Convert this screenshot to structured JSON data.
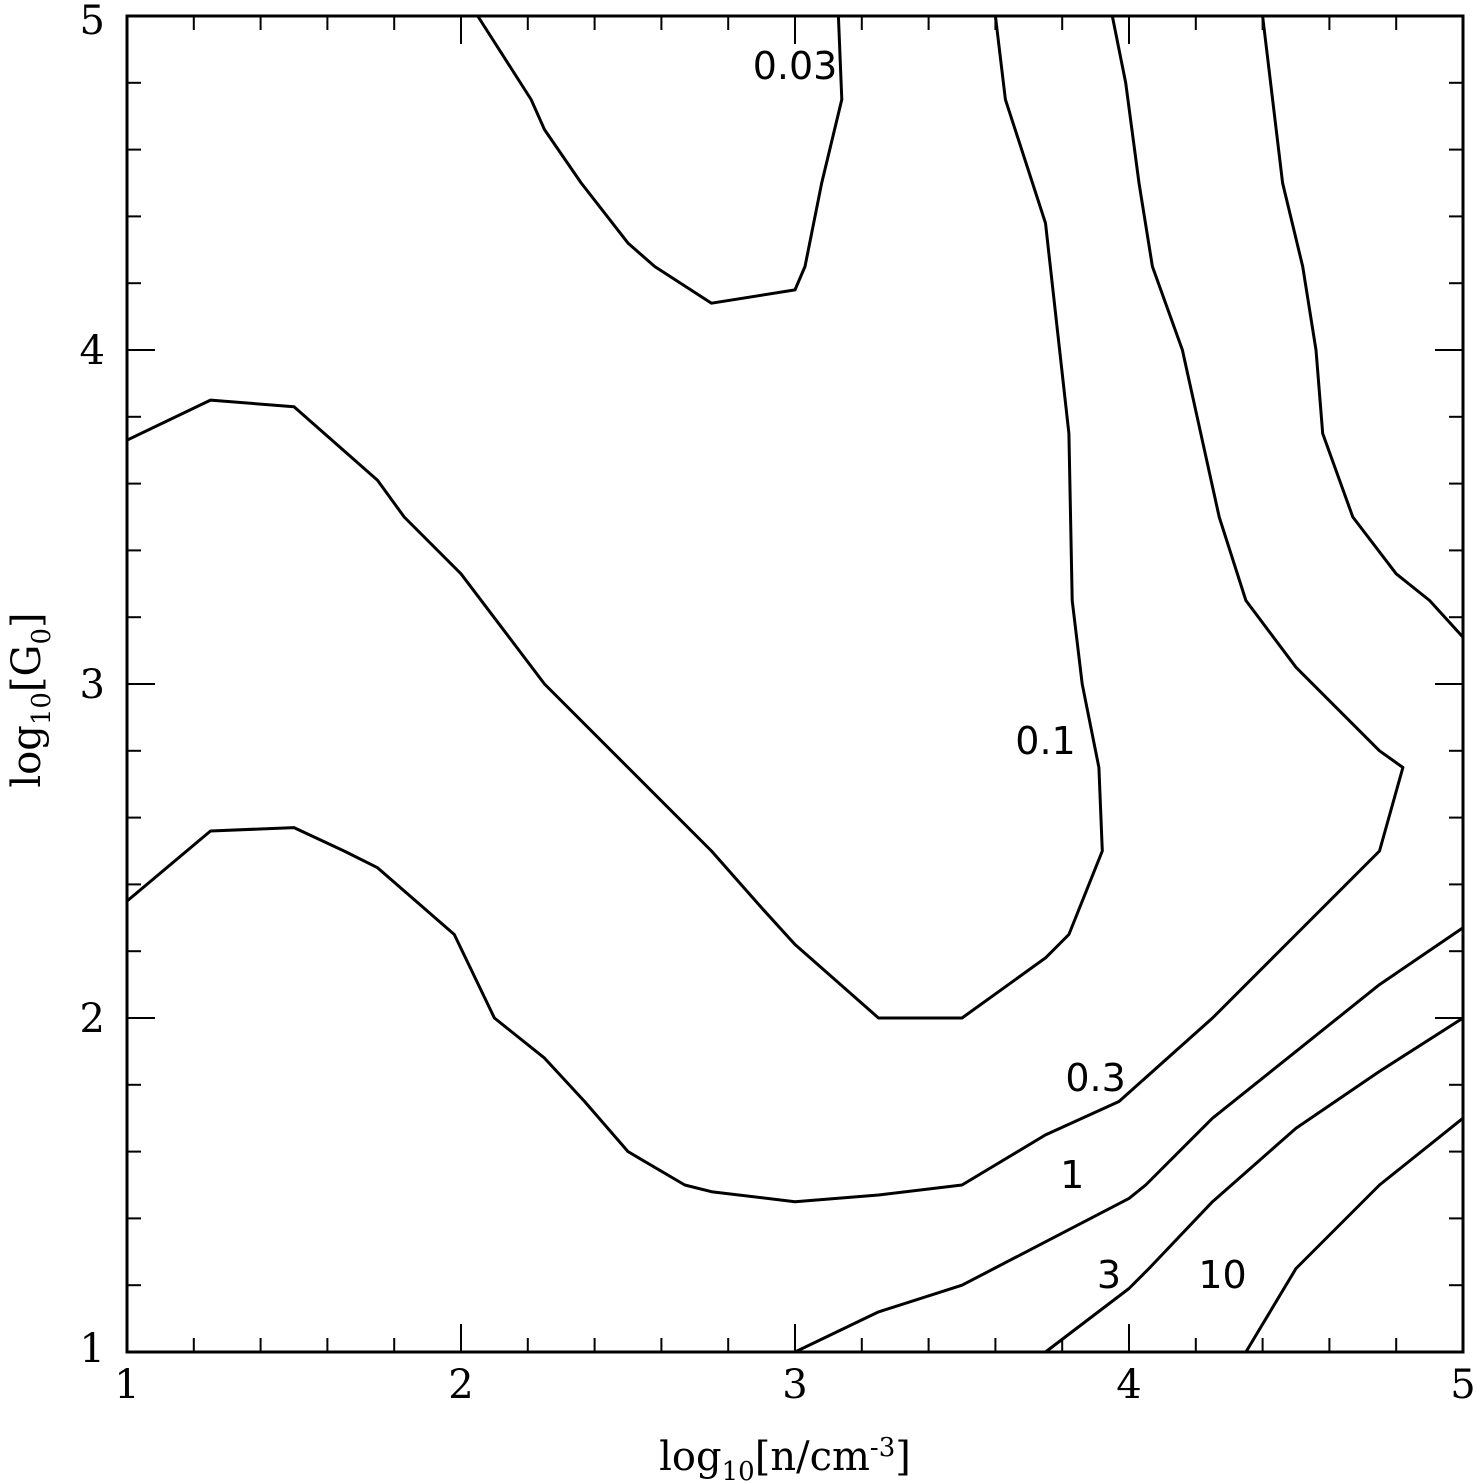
{
  "chart_data": {
    "type": "contour",
    "xlabel": {
      "prefix": "log",
      "sub": "10",
      "body": "[n/cm",
      "sup": "-3",
      "suffix": "]"
    },
    "ylabel": {
      "prefix": "log",
      "sub": "10",
      "body": "[G",
      "sub2": "0",
      "suffix": "]"
    },
    "xlim": [
      1,
      5
    ],
    "ylim": [
      1,
      5
    ],
    "xticks": [
      1,
      2,
      3,
      4,
      5
    ],
    "yticks": [
      1,
      2,
      3,
      4,
      5
    ],
    "minor_step": 0.2,
    "contours": [
      {
        "level": "0.03",
        "label_at": [
          3.0,
          4.85
        ],
        "points": [
          [
            2.05,
            5.0
          ],
          [
            2.21,
            4.75
          ],
          [
            2.25,
            4.66
          ],
          [
            2.36,
            4.5
          ],
          [
            2.5,
            4.32
          ],
          [
            2.58,
            4.25
          ],
          [
            2.75,
            4.14
          ],
          [
            3.0,
            4.18
          ],
          [
            3.03,
            4.25
          ],
          [
            3.08,
            4.5
          ],
          [
            3.14,
            4.75
          ],
          [
            3.13,
            5.0
          ]
        ]
      },
      {
        "level": "0.1",
        "label_at": [
          3.75,
          2.83
        ],
        "points": [
          [
            1.0,
            3.73
          ],
          [
            1.25,
            3.85
          ],
          [
            1.5,
            3.83
          ],
          [
            1.75,
            3.61
          ],
          [
            1.83,
            3.5
          ],
          [
            2.0,
            3.33
          ],
          [
            2.25,
            3.0
          ],
          [
            2.5,
            2.75
          ],
          [
            2.75,
            2.5
          ],
          [
            2.9,
            2.33
          ],
          [
            3.0,
            2.22
          ],
          [
            3.25,
            2.0
          ],
          [
            3.5,
            2.0
          ],
          [
            3.75,
            2.18
          ],
          [
            3.82,
            2.25
          ],
          [
            3.92,
            2.5
          ],
          [
            3.91,
            2.75
          ],
          [
            3.86,
            3.0
          ],
          [
            3.83,
            3.25
          ],
          [
            3.82,
            3.75
          ],
          [
            3.75,
            4.38
          ],
          [
            3.63,
            4.75
          ],
          [
            3.6,
            5.0
          ]
        ]
      },
      {
        "level": "0.3",
        "label_at": [
          3.9,
          1.82
        ],
        "points": [
          [
            1.0,
            2.35
          ],
          [
            1.25,
            2.56
          ],
          [
            1.5,
            2.57
          ],
          [
            1.65,
            2.5
          ],
          [
            1.75,
            2.45
          ],
          [
            1.98,
            2.25
          ],
          [
            2.1,
            2.0
          ],
          [
            2.25,
            1.88
          ],
          [
            2.37,
            1.75
          ],
          [
            2.5,
            1.6
          ],
          [
            2.67,
            1.5
          ],
          [
            2.75,
            1.48
          ],
          [
            3.0,
            1.45
          ],
          [
            3.25,
            1.47
          ],
          [
            3.5,
            1.5
          ],
          [
            3.75,
            1.65
          ],
          [
            3.97,
            1.75
          ],
          [
            4.25,
            2.0
          ],
          [
            4.5,
            2.25
          ],
          [
            4.75,
            2.5
          ],
          [
            4.82,
            2.75
          ],
          [
            4.75,
            2.8
          ],
          [
            4.5,
            3.05
          ],
          [
            4.35,
            3.25
          ],
          [
            4.27,
            3.5
          ],
          [
            4.16,
            4.0
          ],
          [
            4.07,
            4.25
          ],
          [
            4.03,
            4.5
          ],
          [
            3.99,
            4.8
          ],
          [
            3.95,
            5.0
          ]
        ]
      },
      {
        "level": "1",
        "label_at": [
          3.83,
          1.53
        ],
        "points": [
          [
            3.0,
            1.0
          ],
          [
            3.25,
            1.12
          ],
          [
            3.5,
            1.2
          ],
          [
            3.75,
            1.33
          ],
          [
            4.0,
            1.46
          ],
          [
            4.05,
            1.5
          ],
          [
            4.25,
            1.7
          ],
          [
            4.5,
            1.9
          ],
          [
            4.75,
            2.1
          ],
          [
            5.0,
            2.27
          ]
        ]
      },
      {
        "level": "3",
        "label_at": [
          3.94,
          1.23
        ],
        "points": [
          [
            3.75,
            1.0
          ],
          [
            4.0,
            1.19
          ],
          [
            4.06,
            1.25
          ],
          [
            4.25,
            1.45
          ],
          [
            4.5,
            1.67
          ],
          [
            4.75,
            1.84
          ],
          [
            5.0,
            2.0
          ]
        ]
      },
      {
        "level": "10",
        "label_at": [
          4.28,
          1.23
        ],
        "points": [
          [
            4.35,
            1.0
          ],
          [
            4.5,
            1.25
          ],
          [
            4.75,
            1.5
          ],
          [
            5.0,
            1.7
          ]
        ]
      },
      {
        "level": "",
        "points": [
          [
            4.4,
            5.0
          ],
          [
            4.43,
            4.75
          ],
          [
            4.46,
            4.5
          ],
          [
            4.52,
            4.25
          ],
          [
            4.56,
            4.0
          ],
          [
            4.58,
            3.75
          ],
          [
            4.67,
            3.5
          ],
          [
            4.8,
            3.33
          ],
          [
            4.9,
            3.25
          ],
          [
            5.0,
            3.14
          ]
        ]
      }
    ]
  }
}
